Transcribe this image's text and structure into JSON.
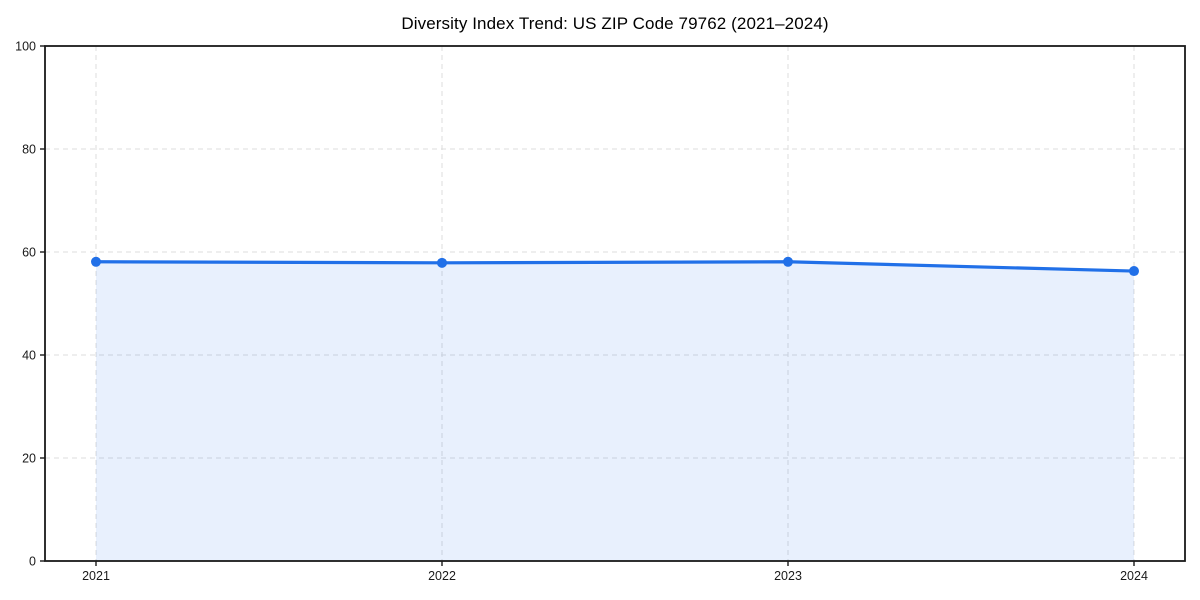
{
  "chart_data": {
    "type": "line",
    "title": "Diversity Index Trend: US ZIP Code 79762 (2021–2024)",
    "categories": [
      "2021",
      "2022",
      "2023",
      "2024"
    ],
    "series": [
      {
        "name": "Diversity Index",
        "values": [
          58.1,
          57.9,
          58.1,
          56.3
        ]
      }
    ],
    "xlabel": "",
    "ylabel": "",
    "ylim": [
      0,
      100
    ],
    "yticks": [
      0,
      20,
      40,
      60,
      80,
      100
    ],
    "grid": "dashed",
    "legend_position": "none",
    "marker": "circle",
    "colors": {
      "line": "#2170E8",
      "marker": "#2170E8",
      "area_fill": "#2170E8",
      "area_opacity": 0.1,
      "gridline": "#dcdcdc",
      "spine": "#1a1a1a",
      "tick_text": "#1a1a1a",
      "background": "#ffffff"
    }
  }
}
